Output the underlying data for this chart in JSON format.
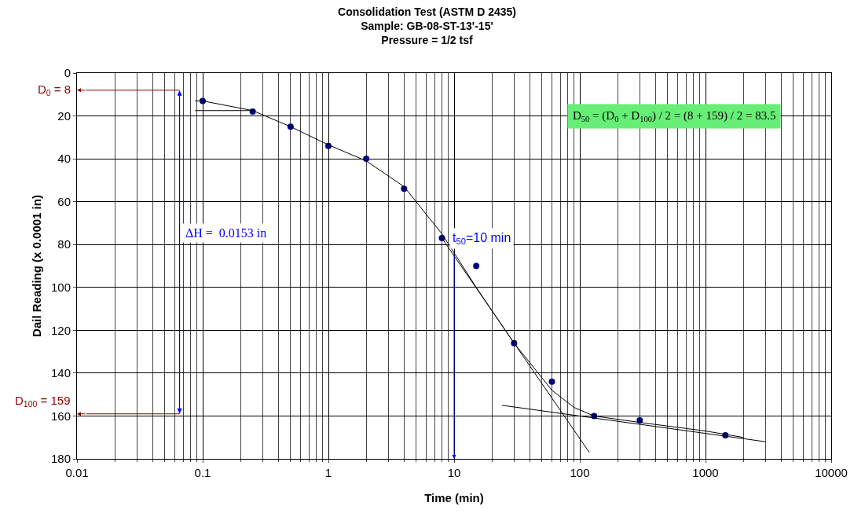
{
  "chart_data": {
    "type": "scatter",
    "title": "Consolidation Test (ASTM D 2435)",
    "subtitle": "Sample: GB-08-ST-13'-15'\nPressure = 1/2 tsf",
    "xlabel": "Time (min)",
    "ylabel": "Dail Reading (x 0.0001 in)",
    "log": "x",
    "grid": true,
    "line_style": "solid",
    "xlim": [
      0.01,
      10000
    ],
    "xticks": [
      0.01,
      0.1,
      1,
      10,
      100,
      1000,
      10000
    ],
    "ylim": [
      180,
      0
    ],
    "yticks": [
      0,
      20,
      40,
      60,
      80,
      100,
      120,
      140,
      160,
      180
    ],
    "series": [
      {
        "marker": "circle",
        "color": "#000080",
        "x": [
          0.1,
          0.25,
          0.5,
          1,
          2,
          4,
          8,
          15,
          30,
          60,
          130,
          300,
          1440
        ],
        "values": [
          13,
          18,
          25,
          34,
          40,
          54,
          77,
          90,
          126,
          144,
          160,
          162,
          169
        ]
      },
      {
        "type": "line",
        "color": "#000000",
        "x": [
          0.1,
          0.25,
          0.5,
          1,
          2,
          4,
          8,
          15,
          30,
          60,
          90,
          130,
          300,
          1000,
          2000
        ],
        "values": [
          13,
          17.5,
          25,
          33.5,
          41,
          53,
          75,
          100,
          126,
          148,
          156,
          160,
          163,
          167,
          170
        ]
      },
      {
        "type": "line",
        "color": "#000000",
        "x": [
          8,
          119
        ],
        "values": [
          77,
          177
        ]
      },
      {
        "type": "line",
        "color": "#000000",
        "x": [
          24,
          3000
        ],
        "values": [
          155,
          172
        ]
      },
      {
        "type": "line",
        "color": "#000000",
        "x": [
          0.087,
          0.24
        ],
        "values": [
          17.5,
          17.5
        ]
      },
      {
        "type": "line",
        "color": "#000000",
        "x": [
          0.087,
          0.1
        ],
        "values": [
          13,
          13
        ]
      }
    ],
    "ref_lines": [
      {
        "axis": "y",
        "value": 8,
        "label": "D$_{0}$ = 8",
        "color": "#8b0000"
      },
      {
        "axis": "y",
        "value": 159,
        "label": "D$_{100}$ = 159",
        "color": "#8b0000"
      }
    ],
    "annotations": [
      "ΔH =  0.0153 in",
      {
        "text": "t$_{50}$=10 min",
        "x": 10,
        "y": 83.5
      },
      "D$_{50}$ = (D$_{0}$ + D$_{100}$) / 2 = (8 + 159) / 2 = 83.5"
    ]
  }
}
